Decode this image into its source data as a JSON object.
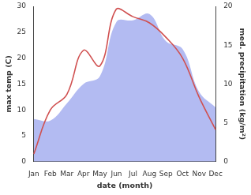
{
  "chart_data": {
    "type": "line",
    "x_label": "date (month)",
    "y_label": "max temp (C)",
    "y2_label": "med. precipitation (kg/m²)",
    "categories": [
      "Jan",
      "Feb",
      "Mar",
      "Apr",
      "May",
      "Jun",
      "Jul",
      "Aug",
      "Sep",
      "Oct",
      "Nov",
      "Dec"
    ],
    "series": [
      {
        "type": "line",
        "color": "#d05050",
        "values": [
          1.5,
          10,
          13,
          21.5,
          18.5,
          29.5,
          28,
          26.8,
          24,
          20,
          12.5,
          6.2
        ]
      },
      {
        "type": "area",
        "axis": "y2",
        "color": "#b3bbf2",
        "values": [
          5.5,
          5.3,
          7.5,
          10,
          11,
          18,
          18.2,
          19,
          15.5,
          14.5,
          9,
          7
        ]
      }
    ],
    "ylim": [
      0,
      30
    ],
    "yticks": [
      0,
      5,
      10,
      15,
      20,
      25,
      30
    ],
    "y2lim": [
      0,
      20
    ],
    "y2ticks": [
      0,
      5,
      10,
      15,
      20
    ],
    "grid": false
  }
}
